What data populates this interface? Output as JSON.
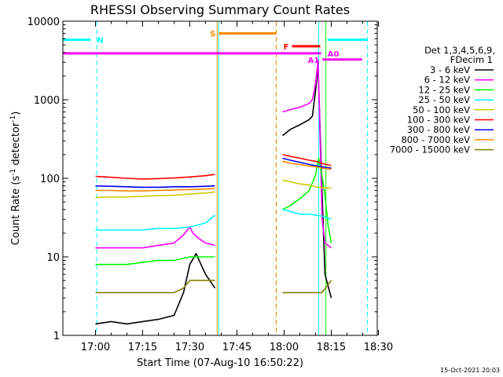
{
  "chart_data": {
    "type": "line",
    "title": "RHESSI Observing Summary Count Rates",
    "xlabel": "Start Time (07-Aug-10 16:50:22)",
    "ylabel_main": "Count Rate (s",
    "ylabel_sup1": "-1",
    "ylabel_mid": " detector",
    "ylabel_sup2": "-1",
    "ylabel_end": ")",
    "yscale": "log",
    "ylim": [
      1,
      10000
    ],
    "xlim_minutes": [
      -10.37,
      89.63
    ],
    "x_ticks": [
      {
        "label": "17:00",
        "t": 0
      },
      {
        "label": "17:15",
        "t": 15
      },
      {
        "label": "17:30",
        "t": 30
      },
      {
        "label": "17:45",
        "t": 45
      },
      {
        "label": "18:00",
        "t": 60
      },
      {
        "label": "18:15",
        "t": 75
      },
      {
        "label": "18:30",
        "t": 90
      }
    ],
    "y_ticks": [
      {
        "label": "1",
        "v": 1
      },
      {
        "label": "10",
        "v": 10
      },
      {
        "label": "100",
        "v": 100
      },
      {
        "label": "1000",
        "v": 1000
      },
      {
        "label": "10000",
        "v": 10000
      }
    ],
    "legend_header": [
      "Det 1,3,4,5,6,9,",
      "FDecim 1"
    ],
    "legend": [
      {
        "label": "3 - 6 keV",
        "color": "#000000"
      },
      {
        "label": "6 - 12 keV",
        "color": "#ff00ff"
      },
      {
        "label": "12 - 25 keV",
        "color": "#00ff00"
      },
      {
        "label": "25 - 50 keV",
        "color": "#00ffff"
      },
      {
        "label": "50 - 100 keV",
        "color": "#cccc00"
      },
      {
        "label": "100 - 300 keV",
        "color": "#ff0000"
      },
      {
        "label": "300 - 800 keV",
        "color": "#0000ff"
      },
      {
        "label": "800 - 7000 keV",
        "color": "#ff8800"
      },
      {
        "label": "7000 - 15000 keV",
        "color": "#808000"
      }
    ],
    "series": [
      {
        "name": "3 - 6 keV",
        "color": "#000000",
        "segments": [
          {
            "x": [
              0,
              5,
              10,
              15,
              20,
              25,
              28,
              30,
              32,
              35,
              38
            ],
            "y": [
              1.4,
              1.5,
              1.4,
              1.5,
              1.6,
              1.8,
              3.5,
              8,
              11,
              6,
              4
            ]
          },
          {
            "x": [
              59.5,
              62,
              65,
              68,
              69,
              70,
              70.8,
              72.1,
              73,
              75
            ],
            "y": [
              350,
              420,
              480,
              560,
              620,
              1300,
              2700,
              60,
              6,
              3
            ]
          }
        ]
      },
      {
        "name": "6 - 12 keV",
        "color": "#ff00ff",
        "segments": [
          {
            "x": [
              0,
              5,
              10,
              15,
              20,
              25,
              28,
              30,
              31,
              33,
              35,
              38
            ],
            "y": [
              13,
              13,
              13,
              13,
              14,
              15,
              19,
              24,
              20,
              17,
              15,
              14
            ]
          },
          {
            "x": [
              59.5,
              62,
              65,
              68,
              69,
              70,
              70.8,
              72.1,
              73,
              75
            ],
            "y": [
              700,
              750,
              800,
              900,
              1000,
              1600,
              3200,
              30,
              15,
              13
            ]
          }
        ]
      },
      {
        "name": "12 - 25 keV",
        "color": "#00ff00",
        "segments": [
          {
            "x": [
              0,
              5,
              10,
              15,
              20,
              25,
              30,
              35,
              38
            ],
            "y": [
              8,
              8,
              8,
              8.5,
              9,
              9,
              10,
              10,
              10
            ]
          },
          {
            "x": [
              59.5,
              62,
              65,
              68,
              70,
              71,
              72,
              73,
              74,
              75
            ],
            "y": [
              40,
              45,
              55,
              70,
              110,
              180,
              110,
              60,
              25,
              15
            ]
          }
        ]
      },
      {
        "name": "25 - 50 keV",
        "color": "#00ffff",
        "segments": [
          {
            "x": [
              0,
              5,
              10,
              15,
              20,
              25,
              30,
              35,
              38
            ],
            "y": [
              22,
              22,
              22,
              22,
              23,
              23,
              24,
              27,
              34
            ]
          },
          {
            "x": [
              59.5,
              62,
              65,
              68,
              70,
              72,
              74,
              75
            ],
            "y": [
              40,
              38,
              35,
              35,
              34,
              33,
              31,
              30
            ]
          }
        ]
      },
      {
        "name": "50 - 100 keV",
        "color": "#cccc00",
        "segments": [
          {
            "x": [
              0,
              5,
              10,
              15,
              20,
              25,
              30,
              35,
              38
            ],
            "y": [
              57,
              58,
              58,
              59,
              60,
              61,
              63,
              65,
              67
            ]
          },
          {
            "x": [
              59.5,
              62,
              65,
              68,
              70,
              72,
              75
            ],
            "y": [
              95,
              90,
              85,
              82,
              78,
              76,
              75
            ]
          }
        ]
      },
      {
        "name": "100 - 300 keV",
        "color": "#ff0000",
        "segments": [
          {
            "x": [
              0,
              5,
              10,
              15,
              20,
              25,
              30,
              35,
              38
            ],
            "y": [
              106,
              103,
              100,
              98,
              99,
              101,
              104,
              108,
              112
            ]
          },
          {
            "x": [
              59.5,
              62,
              65,
              68,
              70,
              72,
              75
            ],
            "y": [
              200,
              190,
              180,
              170,
              165,
              155,
              145
            ]
          }
        ]
      },
      {
        "name": "300 - 800 keV",
        "color": "#0000ff",
        "segments": [
          {
            "x": [
              0,
              5,
              10,
              15,
              20,
              25,
              30,
              35,
              38
            ],
            "y": [
              80,
              79,
              78,
              77,
              77,
              78,
              78,
              79,
              80
            ]
          },
          {
            "x": [
              59.5,
              62,
              65,
              68,
              70,
              72,
              75
            ],
            "y": [
              180,
              170,
              160,
              150,
              145,
              140,
              135
            ]
          }
        ]
      },
      {
        "name": "800 - 7000 keV",
        "color": "#ff8800",
        "segments": [
          {
            "x": [
              0,
              5,
              10,
              15,
              20,
              25,
              30,
              35,
              38
            ],
            "y": [
              70,
              70,
              69,
              69,
              70,
              71,
              72,
              73,
              74
            ]
          },
          {
            "x": [
              59.5,
              62,
              65,
              68,
              70,
              72,
              75
            ],
            "y": [
              165,
              155,
              150,
              143,
              140,
              135,
              130
            ]
          }
        ]
      },
      {
        "name": "7000 - 15000 keV",
        "color": "#808000",
        "segments": [
          {
            "x": [
              0,
              5,
              10,
              15,
              20,
              25,
              28,
              30,
              35,
              38
            ],
            "y": [
              3.5,
              3.5,
              3.5,
              3.5,
              3.5,
              3.5,
              4,
              5,
              5,
              5
            ]
          },
          {
            "x": [
              59.5,
              62,
              65,
              68,
              70,
              72,
              75
            ],
            "y": [
              3.5,
              3.5,
              3.5,
              3.5,
              3.5,
              3.5,
              5
            ]
          }
        ]
      }
    ],
    "annotations": {
      "vlines": [
        {
          "t": -10.37,
          "color": "#00ffff",
          "style": "solid"
        },
        {
          "t": 0.4,
          "color": "#00ffff",
          "style": "dashed"
        },
        {
          "t": 38.7,
          "color": "#ff8800",
          "style": "solid"
        },
        {
          "t": 39.2,
          "color": "#00ffff",
          "style": "solid"
        },
        {
          "t": 57.5,
          "color": "#ff8800",
          "style": "dashed"
        },
        {
          "t": 71.0,
          "color": "#00ffff",
          "style": "solid"
        },
        {
          "t": 73.3,
          "color": "#00ff00",
          "style": "solid"
        },
        {
          "t": 86.5,
          "color": "#00ffff",
          "style": "dashed"
        }
      ],
      "hbars": [
        {
          "label": "N",
          "color": "#00ffff",
          "t0": -10.37,
          "t1": -1.5,
          "v": 5800,
          "label_side": "right"
        },
        {
          "label": "",
          "color": "#00ffff",
          "t0": 73.8,
          "t1": 86.5,
          "v": 5800,
          "label_side": "none"
        },
        {
          "label": "S",
          "color": "#ff8800",
          "t0": 39.2,
          "t1": 57.5,
          "v": 7000,
          "label_side": "left"
        },
        {
          "label": "F",
          "color": "#ff0000",
          "t0": 62.5,
          "t1": 71.5,
          "v": 4800,
          "label_side": "left"
        },
        {
          "label": "A0",
          "color": "#ff00ff",
          "t0": -10.37,
          "t1": 71.8,
          "v": 3900,
          "label_side": "right"
        },
        {
          "label": "A1",
          "color": "#ff00ff",
          "t0": 72.2,
          "t1": 84.8,
          "v": 3250,
          "label_side": "left"
        }
      ]
    },
    "timestamp": "15-Oct-2021 20:03"
  }
}
